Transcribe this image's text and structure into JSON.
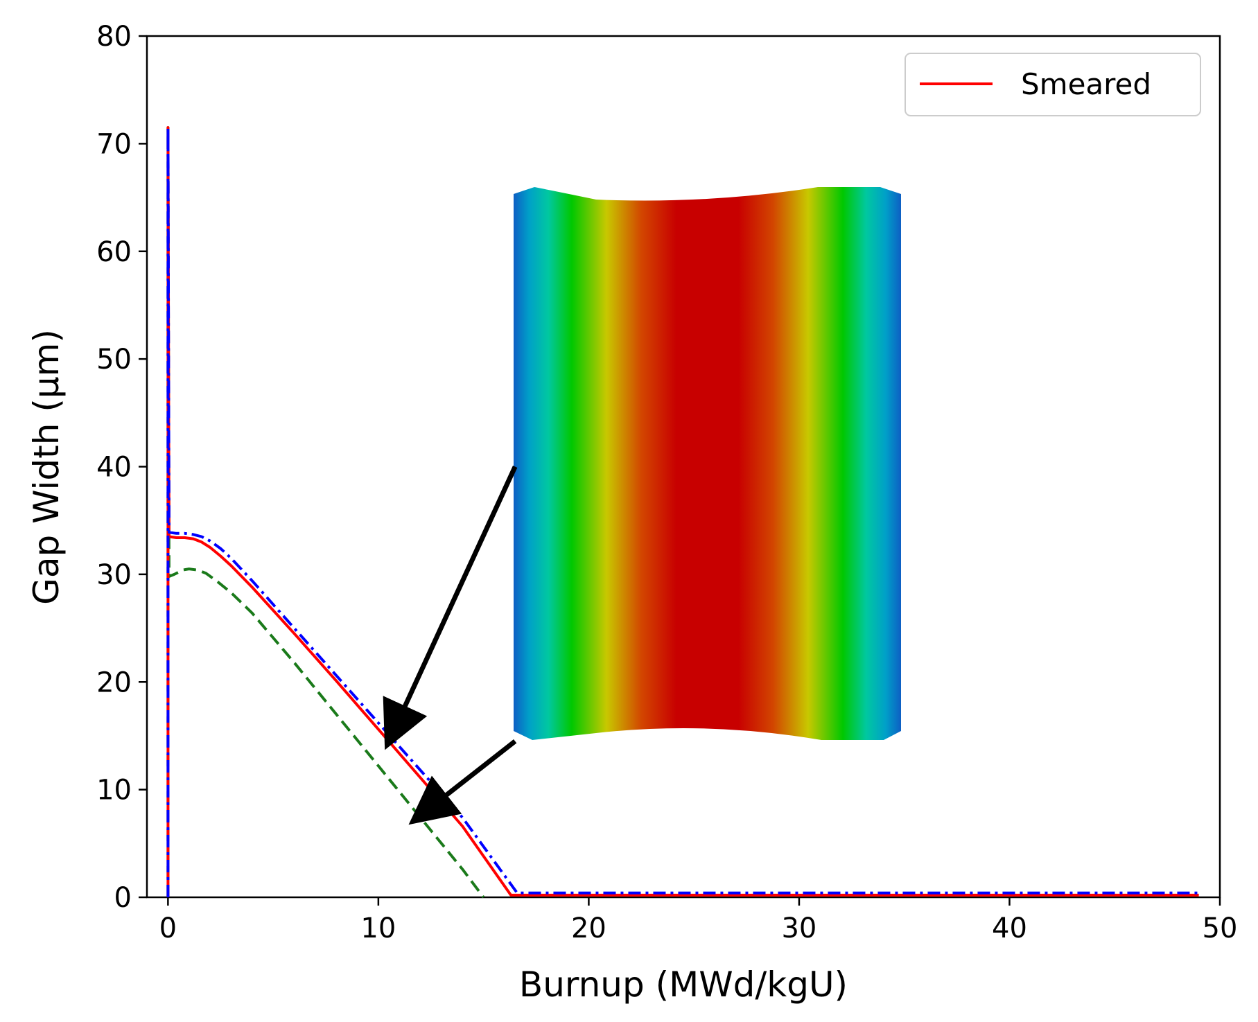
{
  "chart_data": {
    "type": "line",
    "title": "",
    "xlabel": "Burnup (MWd/kgU)",
    "ylabel": "Gap Width (μm)",
    "xlim": [
      -1,
      50
    ],
    "ylim": [
      0,
      80
    ],
    "xticks": [
      0,
      10,
      20,
      30,
      40,
      50
    ],
    "yticks": [
      0,
      10,
      20,
      30,
      40,
      50,
      60,
      70,
      80
    ],
    "grid": false,
    "legend": {
      "placement": "top-right",
      "entries": [
        "Smeared"
      ]
    },
    "series": [
      {
        "name": "Smeared",
        "color": "#ff0000",
        "style": "solid",
        "x": [
          0,
          0,
          0.05,
          0.4,
          0.8,
          1.2,
          1.6,
          2.0,
          2.5,
          3.0,
          4.0,
          6.0,
          8.0,
          10.0,
          12.0,
          14.0,
          16.3,
          17.0,
          25.0,
          35.0,
          45.0,
          49.0
        ],
        "y": [
          0,
          71.5,
          33.5,
          33.4,
          33.4,
          33.3,
          33.0,
          32.5,
          31.7,
          30.8,
          28.8,
          24.5,
          20.1,
          15.6,
          11.1,
          6.6,
          0.2,
          0.2,
          0.2,
          0.2,
          0.2,
          0.2
        ]
      },
      {
        "color": "#0000ff",
        "style": "dashdot",
        "x": [
          0,
          0,
          0.05,
          0.4,
          0.8,
          1.2,
          1.6,
          2.0,
          2.5,
          3.0,
          4.0,
          6.0,
          8.0,
          10.0,
          12.0,
          14.0,
          16.6,
          17.0,
          25.0,
          35.0,
          45.0,
          49.0
        ],
        "y": [
          0,
          71.5,
          33.9,
          33.8,
          33.8,
          33.7,
          33.5,
          33.1,
          32.4,
          31.5,
          29.4,
          25.0,
          20.6,
          16.2,
          11.8,
          7.4,
          0.4,
          0.4,
          0.4,
          0.4,
          0.4,
          0.4
        ]
      },
      {
        "color": "#1a7a1a",
        "style": "dashed",
        "x": [
          0,
          0,
          0.05,
          0.3,
          0.7,
          1.0,
          1.4,
          1.8,
          2.3,
          3.0,
          4.0,
          6.0,
          8.0,
          10.0,
          12.0,
          14.0,
          15.0
        ],
        "y": [
          0,
          71.5,
          29.8,
          30.0,
          30.4,
          30.5,
          30.4,
          30.1,
          29.4,
          28.3,
          26.4,
          21.8,
          17.0,
          12.2,
          7.4,
          2.6,
          0.0
        ]
      }
    ],
    "annotations": [
      {
        "type": "arrow",
        "from_x": 16.5,
        "from_y": 40.0,
        "to_x": 10.5,
        "to_y": 14.5
      },
      {
        "type": "arrow",
        "from_x": 16.5,
        "from_y": 14.5,
        "to_x": 11.8,
        "to_y": 7.3
      }
    ],
    "inset": {
      "type": "contour-image",
      "colormap": [
        "#0d5fc4",
        "#00c8c8",
        "#00c800",
        "#c8c800",
        "#d24600",
        "#c80000"
      ]
    }
  }
}
